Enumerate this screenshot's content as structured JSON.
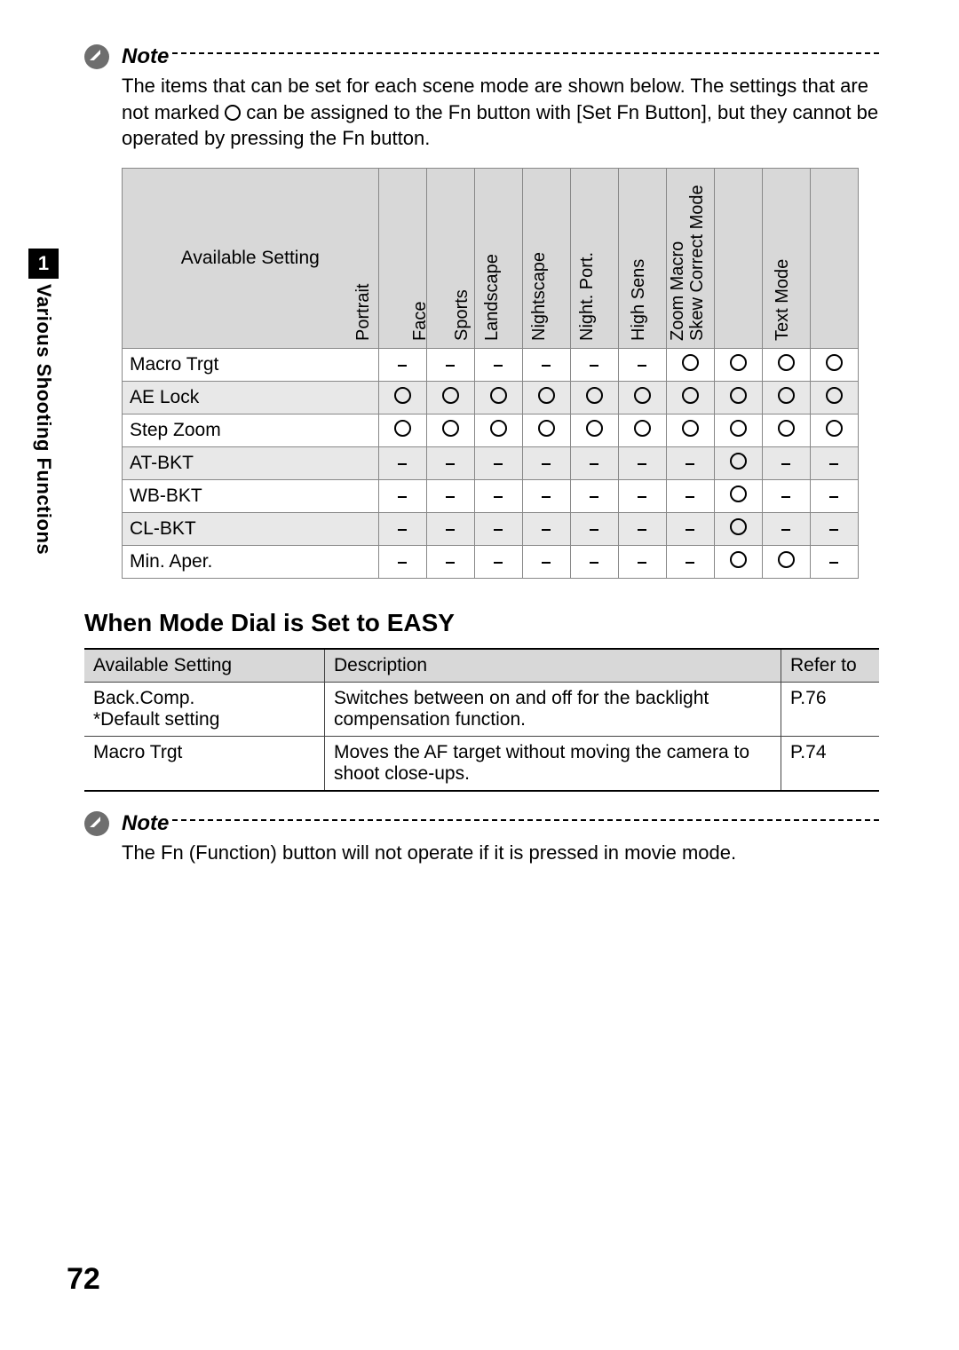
{
  "page_number": "72",
  "side_tab": {
    "number": "1",
    "title": "Various Shooting Functions"
  },
  "note1": {
    "label": "Note",
    "body_parts": [
      "The items that can be set for each scene mode are shown below. The settings that are not marked ",
      " can be assigned to the Fn button with [Set Fn Button], but they cannot be operated by pressing the Fn button."
    ]
  },
  "scene_table": {
    "heading": "Available Setting",
    "columns": [
      "Portrait",
      "Face",
      "Sports",
      "Landscape",
      "Nightscape",
      "Night. Port.",
      "High Sens",
      "Zoom Macro",
      "Skew Correct Mode",
      "Text Mode"
    ],
    "rows": [
      {
        "name": "Macro Trgt",
        "grey": false,
        "cells": [
          "-",
          "-",
          "-",
          "-",
          "-",
          "-",
          "O",
          "O",
          "O",
          "O"
        ]
      },
      {
        "name": "AE Lock",
        "grey": true,
        "cells": [
          "O",
          "O",
          "O",
          "O",
          "O",
          "O",
          "O",
          "O",
          "O",
          "O"
        ]
      },
      {
        "name": "Step Zoom",
        "grey": false,
        "cells": [
          "O",
          "O",
          "O",
          "O",
          "O",
          "O",
          "O",
          "O",
          "O",
          "O"
        ]
      },
      {
        "name": "AT-BKT",
        "grey": true,
        "cells": [
          "-",
          "-",
          "-",
          "-",
          "-",
          "-",
          "-",
          "O",
          "-",
          "-"
        ]
      },
      {
        "name": "WB-BKT",
        "grey": false,
        "cells": [
          "-",
          "-",
          "-",
          "-",
          "-",
          "-",
          "-",
          "O",
          "-",
          "-"
        ]
      },
      {
        "name": "CL-BKT",
        "grey": true,
        "cells": [
          "-",
          "-",
          "-",
          "-",
          "-",
          "-",
          "-",
          "O",
          "-",
          "-"
        ]
      },
      {
        "name": "Min. Aper.",
        "grey": false,
        "cells": [
          "-",
          "-",
          "-",
          "-",
          "-",
          "-",
          "-",
          "O",
          "O",
          "-"
        ]
      }
    ]
  },
  "easy_heading": "When Mode Dial is Set to EASY",
  "easy_table": {
    "columns": [
      "Available Setting",
      "Description",
      "Refer to"
    ],
    "rows": [
      {
        "c1": "Back.Comp.\n*Default setting",
        "c2": "Switches between on and off for the backlight compensation function.",
        "c3": "P.76"
      },
      {
        "c1": "Macro Trgt",
        "c2": "Moves the AF target without moving the camera to shoot close-ups.",
        "c3": "P.74"
      }
    ]
  },
  "note2": {
    "label": "Note",
    "body": "The Fn (Function) button will not operate if it is pressed in movie mode."
  }
}
